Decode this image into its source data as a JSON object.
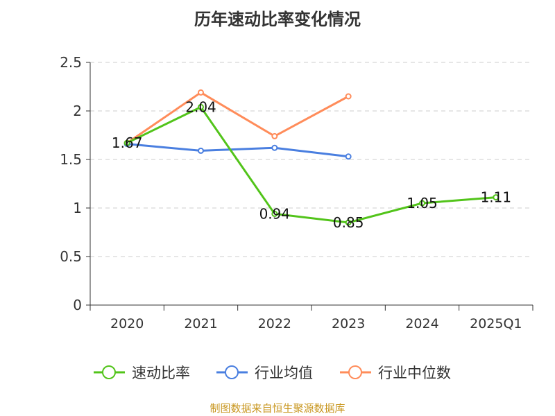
{
  "chart_data": {
    "type": "line",
    "title": "历年速动比率变化情况",
    "categories": [
      "2020",
      "2021",
      "2022",
      "2023",
      "2024",
      "2025Q1"
    ],
    "ylim": [
      0,
      2.5
    ],
    "yticks": [
      0,
      0.5,
      1,
      1.5,
      2,
      2.5
    ],
    "ytick_labels": [
      "0",
      "0.5",
      "1",
      "1.5",
      "2",
      "2.5"
    ],
    "grid": true,
    "legend_placement": "bottom",
    "series": [
      {
        "name": "速动比率",
        "color": "#52c41a",
        "values": [
          1.67,
          2.04,
          0.94,
          0.85,
          1.05,
          1.11
        ],
        "labels": [
          "1.67",
          "2.04",
          "0.94",
          "0.85",
          "1.05",
          "1.11"
        ]
      },
      {
        "name": "行业均值",
        "color": "#4a7fe0",
        "values": [
          1.66,
          1.59,
          1.62,
          1.53,
          null,
          null
        ]
      },
      {
        "name": "行业中位数",
        "color": "#ff8c5a",
        "values": [
          1.67,
          2.19,
          1.74,
          2.15,
          null,
          null
        ]
      }
    ]
  },
  "footer": "制图数据来自恒生聚源数据库"
}
